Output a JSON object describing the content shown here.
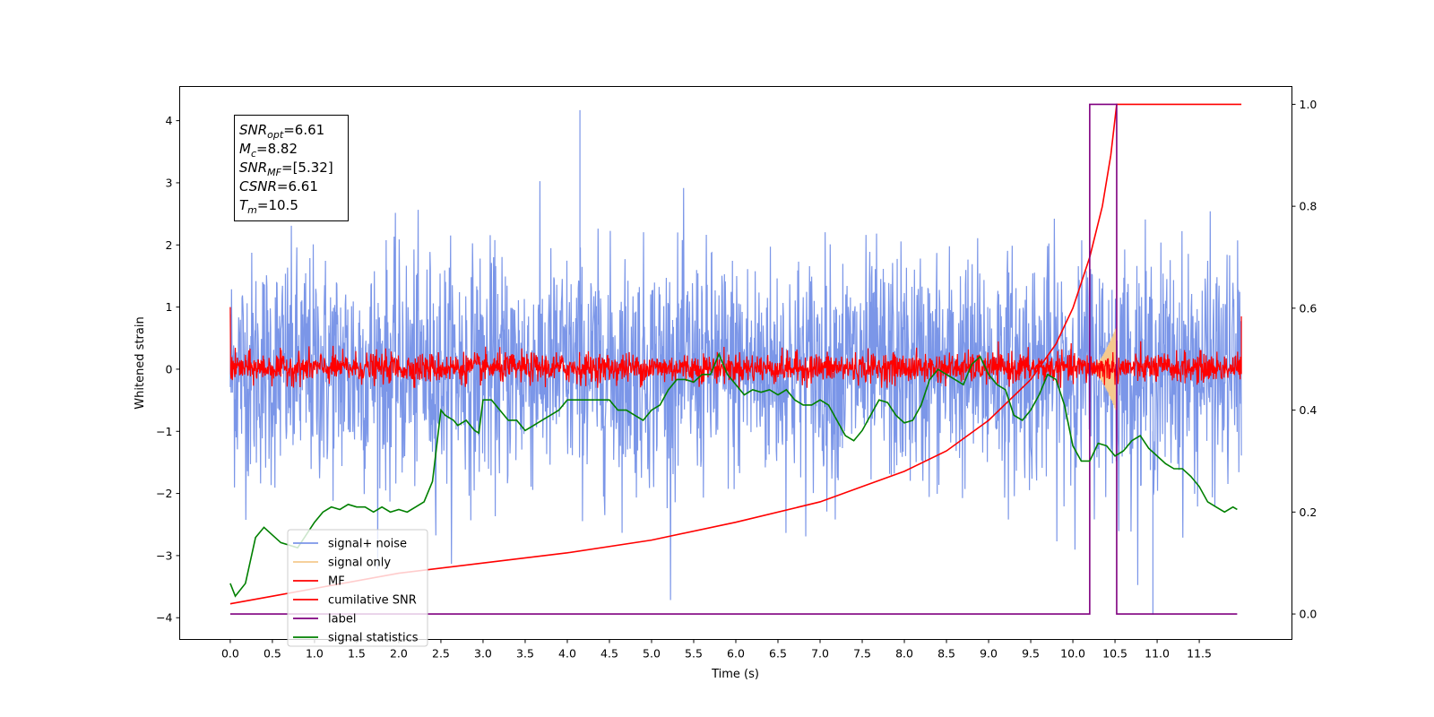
{
  "chart_data": {
    "type": "line",
    "xlabel": "Time (s)",
    "ylabel": "Whitened strain",
    "xlim": [
      -0.6,
      12.6
    ],
    "ylim": [
      -4.35,
      4.55
    ],
    "y2lim": [
      -0.05,
      1.035
    ],
    "x_ticks": [
      "0.0",
      "0.5",
      "1.0",
      "1.5",
      "2.0",
      "2.5",
      "3.0",
      "3.5",
      "4.0",
      "4.5",
      "5.0",
      "5.5",
      "6.0",
      "6.5",
      "7.0",
      "7.5",
      "8.0",
      "8.5",
      "9.0",
      "9.5",
      "10.0",
      "10.5",
      "11.0",
      "11.5"
    ],
    "y_ticks": [
      "-4",
      "-3",
      "-2",
      "-1",
      "0",
      "1",
      "2",
      "3",
      "4"
    ],
    "y2_ticks": [
      "0.0",
      "0.2",
      "0.4",
      "0.6",
      "0.8",
      "1.0"
    ],
    "grid": false,
    "legend_position": "lower-left",
    "info_box": {
      "lines": [
        {
          "name": "SNR",
          "sub": "opt",
          "value": "=6.61"
        },
        {
          "name": "M",
          "sub": "c",
          "value": "=8.82"
        },
        {
          "name": "SNR",
          "sub": "MF",
          "value": "=[5.32]"
        },
        {
          "name": "CSNR",
          "sub": "",
          "value": "=6.61"
        },
        {
          "name": "T",
          "sub": "m",
          "value": "=10.5"
        }
      ]
    },
    "series": [
      {
        "name": "signal+ noise",
        "axis": "left",
        "color": "#7b96e8",
        "kind": "noise-band",
        "x_range": [
          0.0,
          12.0
        ],
        "typical_range": [
          -1.6,
          1.7
        ],
        "max": 4.17,
        "min": -3.95
      },
      {
        "name": "signal only",
        "axis": "left",
        "color": "#f5c98e",
        "kind": "chirp",
        "x_range": [
          10.2,
          10.52
        ],
        "peak_amplitude": 0.7
      },
      {
        "name": "MF",
        "axis": "left",
        "color": "#ff0000",
        "kind": "noise-band",
        "x_range": [
          0.0,
          12.0
        ],
        "typical_range": [
          -0.3,
          0.35
        ],
        "start_value": 1.0,
        "end_value": 0.85
      },
      {
        "name": "cumilative SNR",
        "axis": "right",
        "color": "#ff0000",
        "kind": "curve",
        "x": [
          0.0,
          0.5,
          1.0,
          2.0,
          3.0,
          4.0,
          5.0,
          6.0,
          7.0,
          7.5,
          8.0,
          8.5,
          9.0,
          9.5,
          9.8,
          10.0,
          10.2,
          10.35,
          10.45,
          10.52,
          10.52,
          12.0
        ],
        "y": [
          0.02,
          0.035,
          0.05,
          0.08,
          0.1,
          0.12,
          0.145,
          0.18,
          0.22,
          0.25,
          0.28,
          0.32,
          0.38,
          0.46,
          0.53,
          0.6,
          0.7,
          0.8,
          0.9,
          1.0,
          1.0,
          1.0
        ]
      },
      {
        "name": "label",
        "axis": "right",
        "color": "#800080",
        "kind": "step",
        "x": [
          0.0,
          10.2,
          10.2,
          10.52,
          10.52,
          11.95
        ],
        "y": [
          0.0,
          0.0,
          1.0,
          1.0,
          0.0,
          0.0
        ]
      },
      {
        "name": "signal statistics",
        "axis": "right",
        "color": "#008000",
        "kind": "curve",
        "x": [
          0.0,
          0.06,
          0.18,
          0.3,
          0.4,
          0.5,
          0.6,
          0.8,
          0.9,
          1.0,
          1.1,
          1.2,
          1.3,
          1.4,
          1.5,
          1.6,
          1.7,
          1.8,
          1.9,
          2.0,
          2.1,
          2.2,
          2.3,
          2.4,
          2.45,
          2.5,
          2.55,
          2.65,
          2.7,
          2.8,
          2.9,
          2.95,
          3.0,
          3.1,
          3.2,
          3.3,
          3.4,
          3.5,
          3.6,
          3.7,
          3.8,
          3.9,
          4.0,
          4.2,
          4.4,
          4.5,
          4.6,
          4.7,
          4.8,
          4.9,
          5.0,
          5.1,
          5.2,
          5.3,
          5.4,
          5.5,
          5.6,
          5.7,
          5.8,
          5.9,
          6.0,
          6.1,
          6.2,
          6.3,
          6.4,
          6.5,
          6.6,
          6.7,
          6.8,
          6.9,
          7.0,
          7.1,
          7.2,
          7.3,
          7.4,
          7.5,
          7.6,
          7.7,
          7.8,
          7.9,
          8.0,
          8.1,
          8.2,
          8.3,
          8.4,
          8.5,
          8.6,
          8.7,
          8.8,
          8.9,
          9.0,
          9.1,
          9.2,
          9.3,
          9.4,
          9.5,
          9.6,
          9.7,
          9.8,
          9.9,
          10.0,
          10.1,
          10.2,
          10.3,
          10.4,
          10.5,
          10.6,
          10.7,
          10.8,
          10.9,
          11.0,
          11.1,
          11.2,
          11.3,
          11.4,
          11.5,
          11.6,
          11.7,
          11.8,
          11.9,
          11.95
        ],
        "y": [
          0.06,
          0.035,
          0.06,
          0.15,
          0.17,
          0.155,
          0.14,
          0.13,
          0.155,
          0.18,
          0.2,
          0.21,
          0.205,
          0.215,
          0.21,
          0.21,
          0.2,
          0.21,
          0.2,
          0.205,
          0.2,
          0.21,
          0.22,
          0.26,
          0.33,
          0.4,
          0.39,
          0.38,
          0.37,
          0.38,
          0.36,
          0.355,
          0.42,
          0.42,
          0.4,
          0.38,
          0.38,
          0.36,
          0.37,
          0.38,
          0.39,
          0.4,
          0.42,
          0.42,
          0.42,
          0.42,
          0.4,
          0.4,
          0.39,
          0.38,
          0.4,
          0.41,
          0.44,
          0.46,
          0.46,
          0.455,
          0.47,
          0.47,
          0.51,
          0.47,
          0.45,
          0.43,
          0.44,
          0.435,
          0.44,
          0.43,
          0.44,
          0.42,
          0.41,
          0.41,
          0.42,
          0.41,
          0.38,
          0.35,
          0.34,
          0.36,
          0.39,
          0.42,
          0.415,
          0.39,
          0.375,
          0.38,
          0.41,
          0.46,
          0.48,
          0.47,
          0.46,
          0.45,
          0.49,
          0.505,
          0.47,
          0.45,
          0.44,
          0.39,
          0.38,
          0.4,
          0.43,
          0.47,
          0.46,
          0.41,
          0.33,
          0.3,
          0.3,
          0.335,
          0.33,
          0.31,
          0.32,
          0.34,
          0.35,
          0.325,
          0.31,
          0.295,
          0.285,
          0.285,
          0.27,
          0.25,
          0.22,
          0.21,
          0.2,
          0.21,
          0.205
        ]
      }
    ]
  }
}
